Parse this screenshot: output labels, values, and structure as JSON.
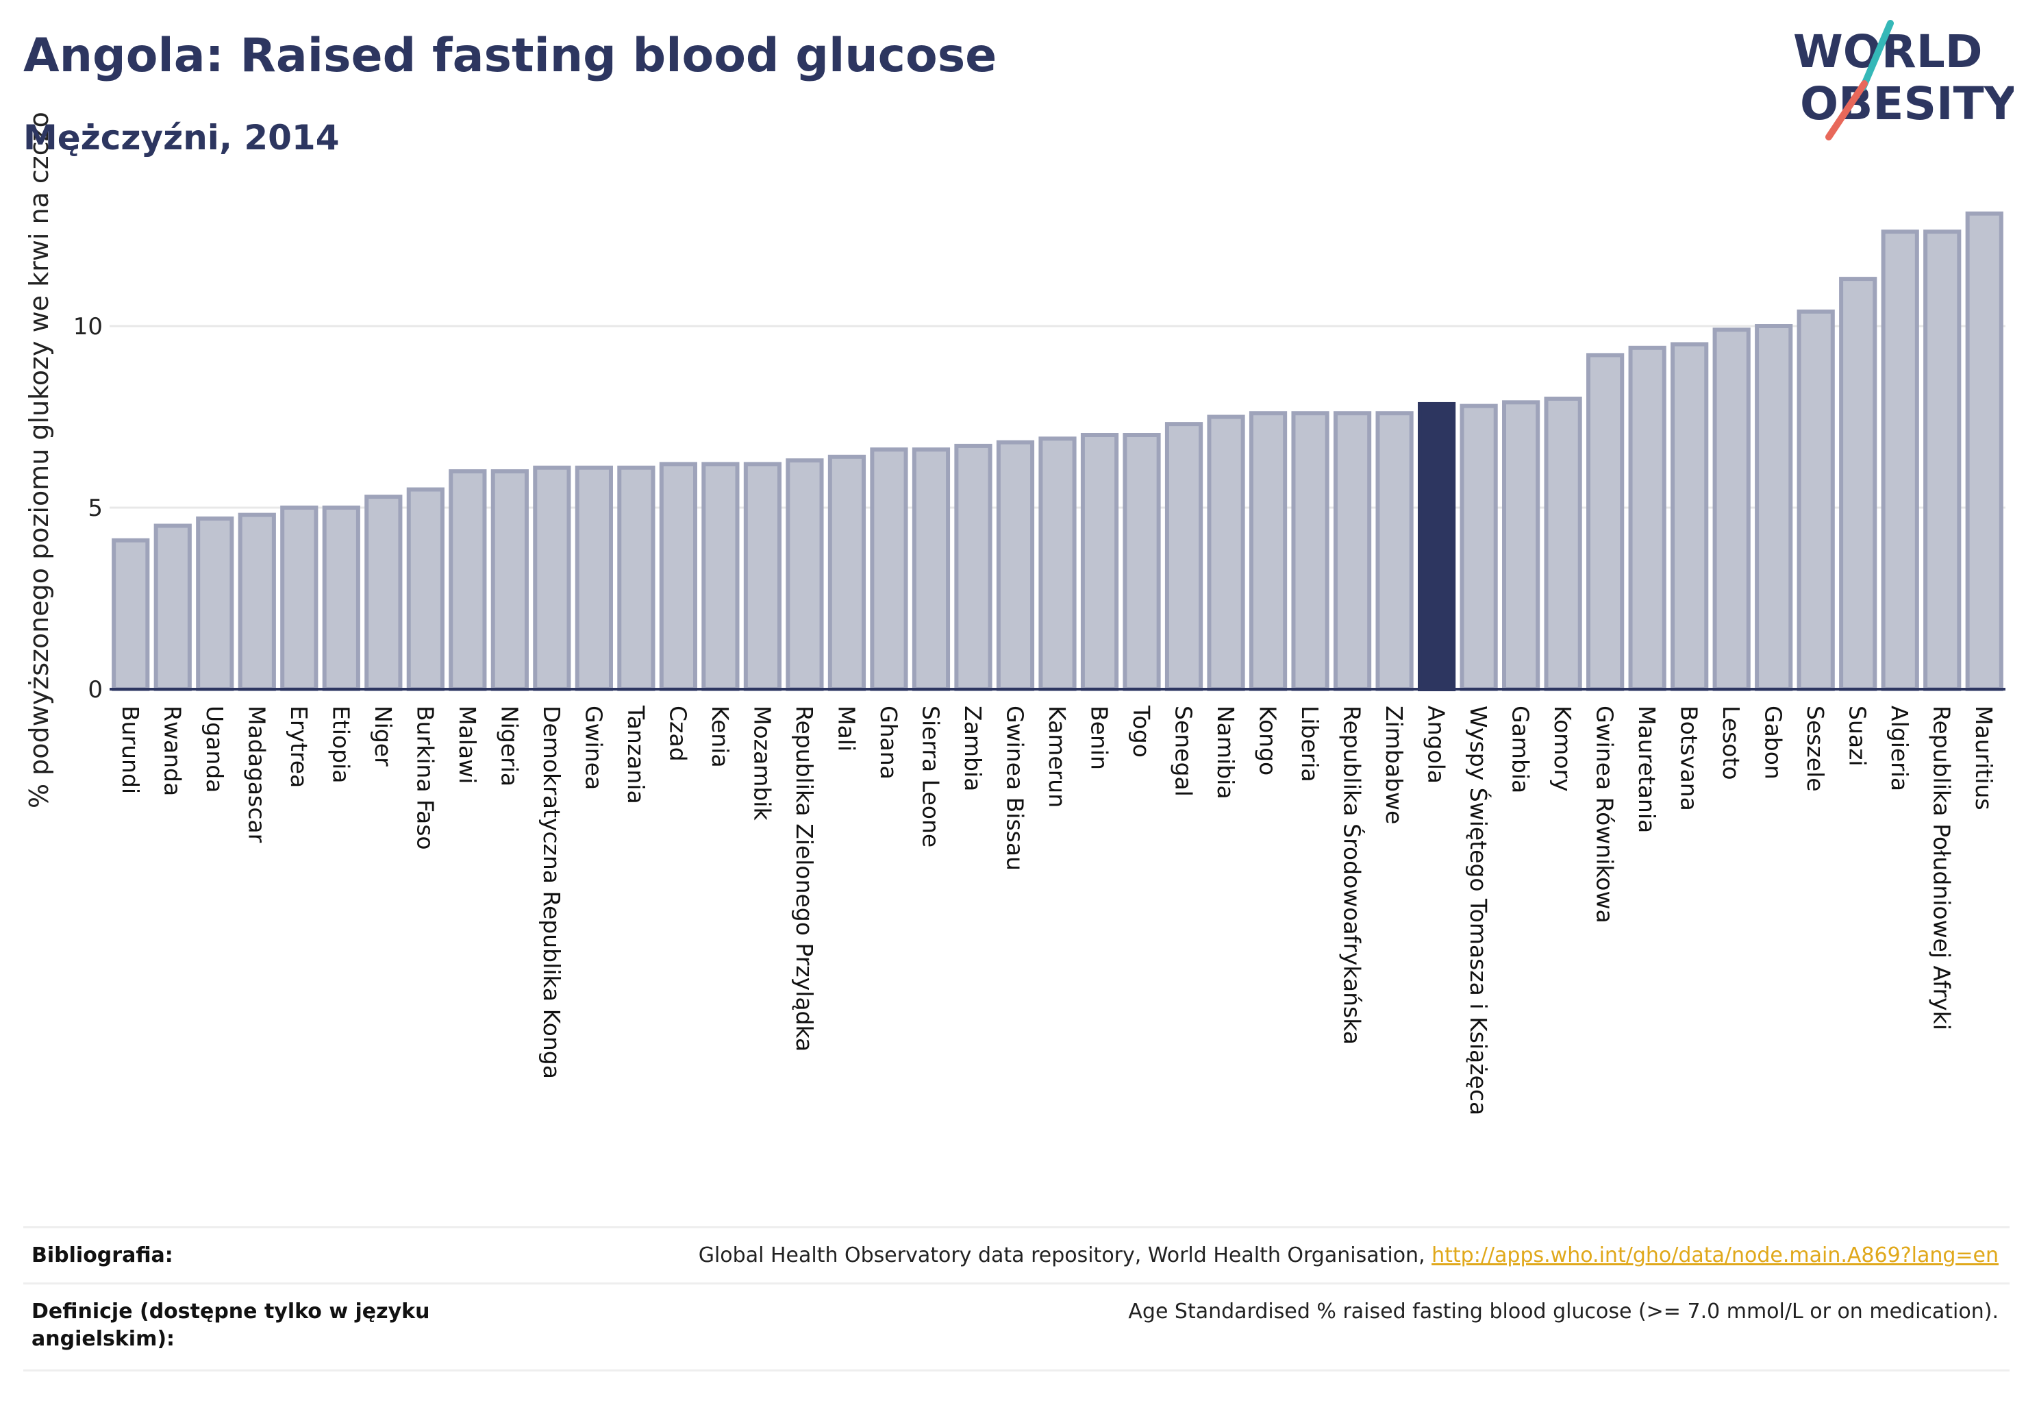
{
  "header": {
    "title": "Angola: Raised fasting blood glucose",
    "subtitle": "Mężczyźni, 2014"
  },
  "logo": {
    "line1": "WORLD",
    "line2": "OBESITY",
    "accent_teal": "#35b8b8",
    "accent_red": "#e8685a",
    "text_color": "#2d3660"
  },
  "colors": {
    "bar_fill": "#bfc3d0",
    "bar_stroke": "#9ea3ba",
    "highlight_fill": "#2d3660",
    "grid": "#e8e8e8",
    "axis": "#2d3660"
  },
  "chart_data": {
    "type": "bar",
    "ylabel": "% podwyższonego poziomu glukozy we krwi na czczo",
    "ylim": [
      0,
      13.5
    ],
    "yticks": [
      0,
      5,
      10
    ],
    "grid": true,
    "highlight": "Angola",
    "categories": [
      "Burundi",
      "Rwanda",
      "Uganda",
      "Madagascar",
      "Erytrea",
      "Etiopia",
      "Niger",
      "Burkina Faso",
      "Malawi",
      "Nigeria",
      "Demokratyczna Republika Konga",
      "Gwinea",
      "Tanzania",
      "Czad",
      "Kenia",
      "Mozambik",
      "Republika Zielonego Przylądka",
      "Mali",
      "Ghana",
      "Sierra Leone",
      "Zambia",
      "Gwinea Bissau",
      "Kamerun",
      "Benin",
      "Togo",
      "Senegal",
      "Namibia",
      "Kongo",
      "Liberia",
      "Republika Środowoafrykańska",
      "Zimbabwe",
      "Angola",
      "Wyspy Świętego Tomasza i Książęca",
      "Gambia",
      "Komory",
      "Gwinea Równikowa",
      "Mauretania",
      "Botsvana",
      "Lesoto",
      "Gabon",
      "Seszele",
      "Suazi",
      "Algieria",
      "Republika Południowej Afryki",
      "Mauritius"
    ],
    "values": [
      4.1,
      4.5,
      4.7,
      4.8,
      5.0,
      5.0,
      5.3,
      5.5,
      6.0,
      6.0,
      6.1,
      6.1,
      6.1,
      6.2,
      6.2,
      6.2,
      6.3,
      6.4,
      6.6,
      6.6,
      6.7,
      6.8,
      6.9,
      7.0,
      7.0,
      7.3,
      7.5,
      7.6,
      7.6,
      7.6,
      7.6,
      7.85,
      7.8,
      7.9,
      8.0,
      9.2,
      9.4,
      9.5,
      9.9,
      10.0,
      10.4,
      11.3,
      12.6,
      12.6,
      13.1
    ]
  },
  "footer": {
    "bibliography_label": "Bibliografia:",
    "bibliography_text": "Global Health Observatory data repository, World Health Organisation, ",
    "bibliography_link": "http://apps.who.int/gho/data/node.main.A869?lang=en",
    "definitions_label": "Definicje (dostępne tylko w języku angielskim):",
    "definitions_text": "Age Standardised % raised fasting blood glucose (>= 7.0 mmol/L or on medication)."
  }
}
